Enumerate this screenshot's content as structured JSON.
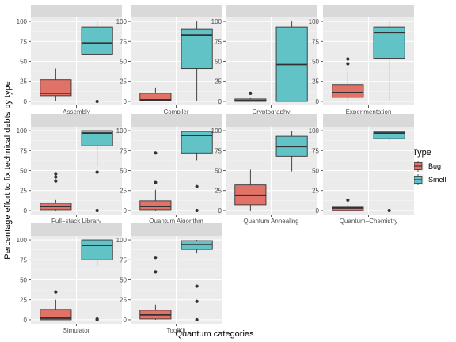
{
  "chart_data": {
    "type": "boxplot",
    "xlabel": "Quantum categories",
    "ylabel": "Percentage effort to fix technical debts by type",
    "ylim": [
      0,
      100
    ],
    "yticks": [
      0,
      25,
      50,
      75,
      100
    ],
    "legend": {
      "title": "Type",
      "placement": "right",
      "entries": [
        {
          "label": "Bug",
          "color": "#E07268"
        },
        {
          "label": "Smell",
          "color": "#62C3C7"
        }
      ]
    },
    "series_colors": {
      "Bug": "#E07268",
      "Smell": "#62C3C7"
    },
    "grid": true,
    "panels": [
      {
        "name": "Assembly",
        "boxes": [
          {
            "type": "Bug",
            "q1": 7,
            "median": 10,
            "q3": 27,
            "wlow": 0,
            "whigh": 41,
            "outliers": []
          },
          {
            "type": "Smell",
            "q1": 59,
            "median": 73,
            "q3": 93,
            "wlow": 59,
            "whigh": 100,
            "outliers": [
              0
            ]
          }
        ]
      },
      {
        "name": "Compiler",
        "boxes": [
          {
            "type": "Bug",
            "q1": 1,
            "median": 2,
            "q3": 10,
            "wlow": 0,
            "whigh": 17,
            "outliers": []
          },
          {
            "type": "Smell",
            "q1": 41,
            "median": 83,
            "q3": 90,
            "wlow": 0,
            "whigh": 100,
            "outliers": []
          }
        ]
      },
      {
        "name": "Cryptography",
        "boxes": [
          {
            "type": "Bug",
            "q1": 0,
            "median": 1,
            "q3": 3,
            "wlow": 0,
            "whigh": 4,
            "outliers": [
              10
            ]
          },
          {
            "type": "Smell",
            "q1": 0,
            "median": 46,
            "q3": 93,
            "wlow": 0,
            "whigh": 100,
            "outliers": []
          }
        ]
      },
      {
        "name": "Experimentation",
        "boxes": [
          {
            "type": "Bug",
            "q1": 5,
            "median": 11,
            "q3": 21,
            "wlow": 0,
            "whigh": 37,
            "outliers": [
              47,
              53
            ]
          },
          {
            "type": "Smell",
            "q1": 54,
            "median": 86,
            "q3": 93,
            "wlow": 0,
            "whigh": 100,
            "outliers": []
          }
        ]
      },
      {
        "name": "Full−stack Library",
        "boxes": [
          {
            "type": "Bug",
            "q1": 1,
            "median": 5,
            "q3": 9,
            "wlow": 0,
            "whigh": 13,
            "outliers": [
              37,
              42,
              46
            ]
          },
          {
            "type": "Smell",
            "q1": 81,
            "median": 97,
            "q3": 100,
            "wlow": 55,
            "whigh": 100,
            "outliers": [
              0,
              48
            ]
          }
        ]
      },
      {
        "name": "Quantum Algorithm",
        "boxes": [
          {
            "type": "Bug",
            "q1": 1,
            "median": 5,
            "q3": 12,
            "wlow": 0,
            "whigh": 26,
            "outliers": [
              35,
              72
            ]
          },
          {
            "type": "Smell",
            "q1": 72,
            "median": 94,
            "q3": 99,
            "wlow": 63,
            "whigh": 100,
            "outliers": [
              0,
              30
            ]
          }
        ]
      },
      {
        "name": "Quantum Annealing",
        "boxes": [
          {
            "type": "Bug",
            "q1": 7,
            "median": 19,
            "q3": 32,
            "wlow": 0,
            "whigh": 51,
            "outliers": []
          },
          {
            "type": "Smell",
            "q1": 68,
            "median": 80,
            "q3": 93,
            "wlow": 49,
            "whigh": 100,
            "outliers": []
          }
        ]
      },
      {
        "name": "Quantum−Chemistry",
        "boxes": [
          {
            "type": "Bug",
            "q1": 0,
            "median": 3,
            "q3": 5,
            "wlow": 0,
            "whigh": 7,
            "outliers": [
              13
            ]
          },
          {
            "type": "Smell",
            "q1": 90,
            "median": 97,
            "q3": 99,
            "wlow": 87,
            "whigh": 100,
            "outliers": [
              0
            ]
          }
        ]
      },
      {
        "name": "Simulator",
        "boxes": [
          {
            "type": "Bug",
            "q1": 0,
            "median": 2,
            "q3": 13,
            "wlow": 0,
            "whigh": 25,
            "outliers": [
              35
            ]
          },
          {
            "type": "Smell",
            "q1": 75,
            "median": 93,
            "q3": 100,
            "wlow": 67,
            "whigh": 100,
            "outliers": [
              0,
              1
            ]
          }
        ]
      },
      {
        "name": "ToolKit",
        "boxes": [
          {
            "type": "Bug",
            "q1": 1,
            "median": 6,
            "q3": 12,
            "wlow": 0,
            "whigh": 19,
            "outliers": [
              60,
              78
            ]
          },
          {
            "type": "Smell",
            "q1": 88,
            "median": 94,
            "q3": 99,
            "wlow": 83,
            "whigh": 100,
            "outliers": [
              0,
              23,
              42
            ]
          }
        ]
      }
    ]
  }
}
